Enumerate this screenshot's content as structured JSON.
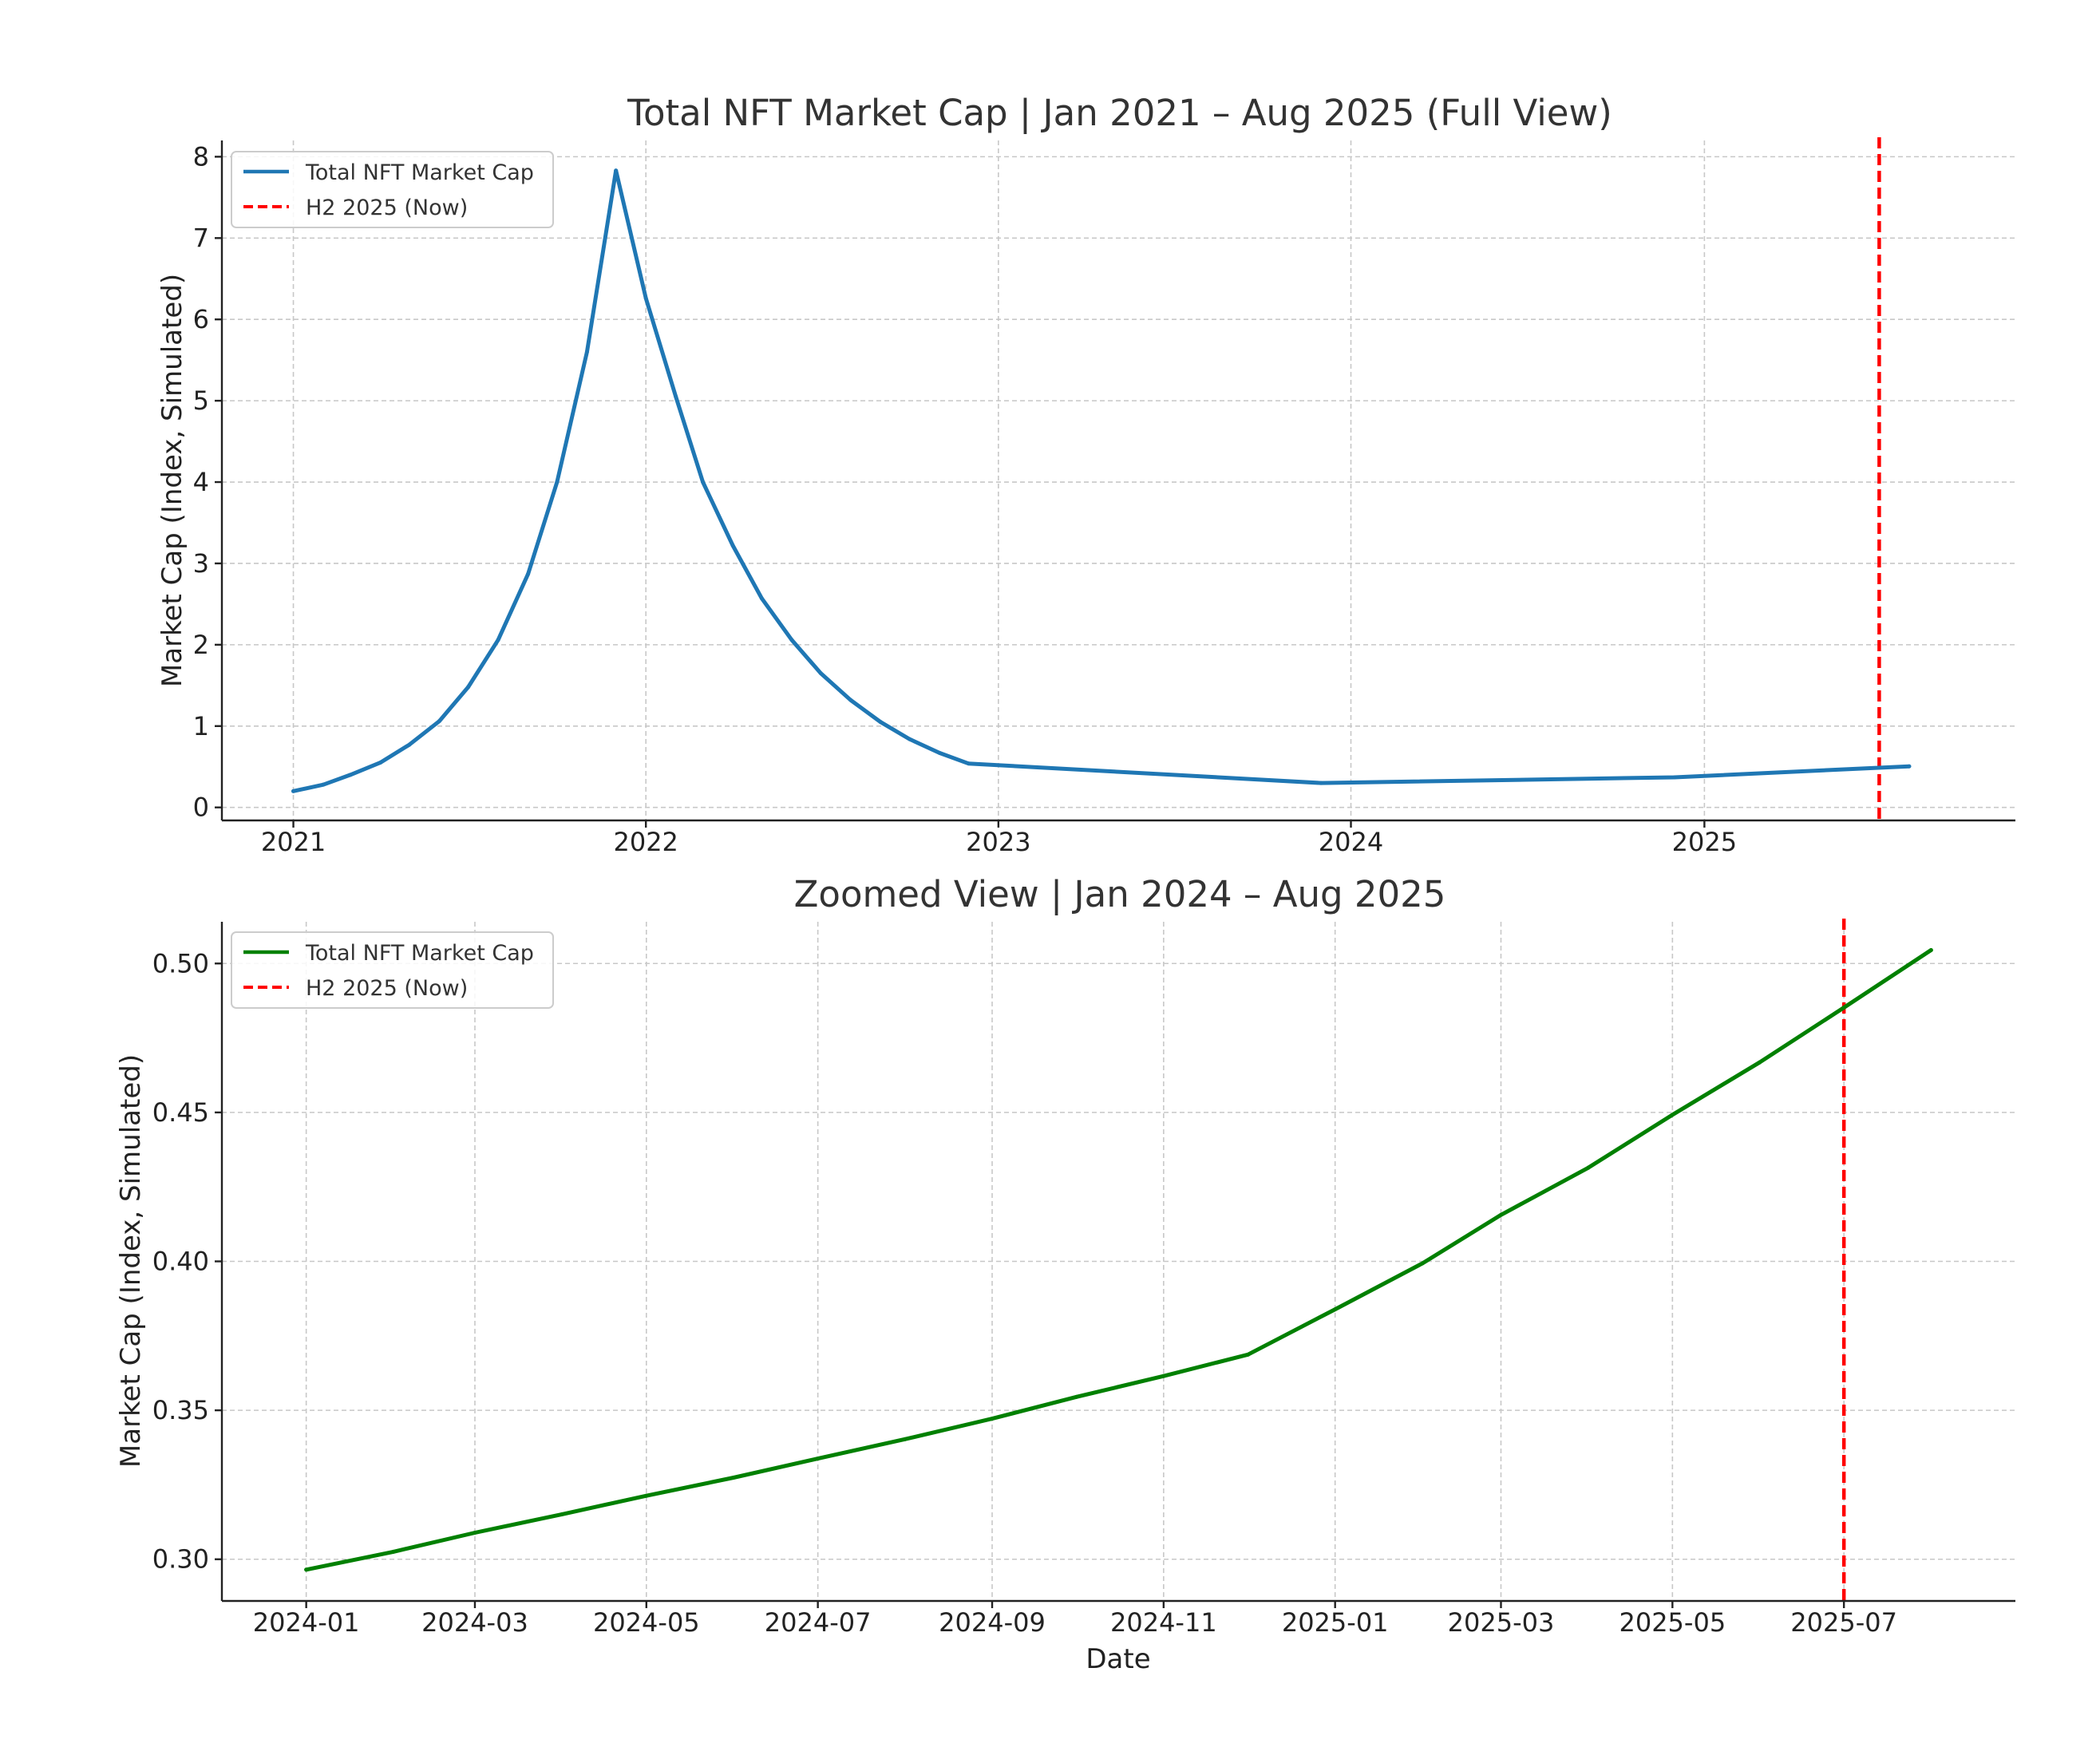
{
  "chart_data": [
    {
      "type": "line",
      "title": "Total NFT Market Cap | Jan 2021 – Aug 2025 (Full View)",
      "xlabel": "",
      "ylabel": "Market Cap (Index, Simulated)",
      "xlim": [
        "2020-10-19",
        "2025-11-19"
      ],
      "ylim": [
        -0.16,
        8.2
      ],
      "x_ticks": [
        "2021",
        "2022",
        "2023",
        "2024",
        "2025"
      ],
      "y_ticks": [
        0,
        1,
        2,
        3,
        4,
        5,
        6,
        7,
        8
      ],
      "grid": true,
      "legend": "top-left",
      "series": [
        {
          "name": "Total NFT Market Cap",
          "color": "#1f77b4",
          "style": "solid",
          "points": [
            [
              "2021-01-01",
              0.2
            ],
            [
              "2021-02-01",
              0.28
            ],
            [
              "2021-03-01",
              0.4
            ],
            [
              "2021-04-01",
              0.55
            ],
            [
              "2021-05-01",
              0.77
            ],
            [
              "2021-06-01",
              1.06
            ],
            [
              "2021-07-01",
              1.48
            ],
            [
              "2021-08-01",
              2.06
            ],
            [
              "2021-09-01",
              2.87
            ],
            [
              "2021-10-01",
              4.0
            ],
            [
              "2021-11-01",
              5.6
            ],
            [
              "2021-12-01",
              7.83
            ],
            [
              "2022-01-01",
              6.26
            ],
            [
              "2022-02-01",
              5.05
            ],
            [
              "2022-03-01",
              4.0
            ],
            [
              "2022-04-01",
              3.22
            ],
            [
              "2022-05-01",
              2.57
            ],
            [
              "2022-06-01",
              2.06
            ],
            [
              "2022-07-01",
              1.65
            ],
            [
              "2022-08-01",
              1.32
            ],
            [
              "2022-09-01",
              1.05
            ],
            [
              "2022-10-01",
              0.84
            ],
            [
              "2022-11-01",
              0.67
            ],
            [
              "2022-12-01",
              0.54
            ],
            [
              "2023-12-01",
              0.3
            ],
            [
              "2024-12-01",
              0.37
            ],
            [
              "2025-08-01",
              0.505
            ]
          ]
        }
      ],
      "vlines": [
        {
          "name": "H2 2025 (Now)",
          "x": "2025-07-01",
          "color": "#ff0000",
          "style": "dashed"
        }
      ]
    },
    {
      "type": "line",
      "title": "Zoomed View | Jan 2024 – Aug 2025",
      "xlabel": "Date",
      "ylabel": "Market Cap (Index, Simulated)",
      "xlim": [
        "2023-12-02",
        "2025-08-31"
      ],
      "ylim": [
        0.286,
        0.514
      ],
      "x_ticks": [
        "2024-01",
        "2024-03",
        "2024-05",
        "2024-07",
        "2024-09",
        "2024-11",
        "2025-01",
        "2025-03",
        "2025-05",
        "2025-07"
      ],
      "y_ticks": [
        "0.30",
        "0.35",
        "0.40",
        "0.45",
        "0.50"
      ],
      "grid": true,
      "legend": "top-left",
      "series": [
        {
          "name": "Total NFT Market Cap",
          "color": "#008000",
          "style": "solid",
          "points": [
            [
              "2024-01-01",
              0.2965
            ],
            [
              "2024-02-01",
              0.3025
            ],
            [
              "2024-03-01",
              0.3089
            ],
            [
              "2024-04-01",
              0.3151
            ],
            [
              "2024-05-01",
              0.3213
            ],
            [
              "2024-06-01",
              0.3274
            ],
            [
              "2024-07-01",
              0.3338
            ],
            [
              "2024-08-01",
              0.3403
            ],
            [
              "2024-09-01",
              0.3472
            ],
            [
              "2024-10-01",
              0.3545
            ],
            [
              "2024-11-01",
              0.3615
            ],
            [
              "2024-12-01",
              0.3687
            ],
            [
              "2025-01-01",
              0.3839
            ],
            [
              "2025-02-01",
              0.3993
            ],
            [
              "2025-03-01",
              0.4156
            ],
            [
              "2025-04-01",
              0.4314
            ],
            [
              "2025-05-01",
              0.4492
            ],
            [
              "2025-06-01",
              0.4668
            ],
            [
              "2025-07-01",
              0.4852
            ],
            [
              "2025-08-01",
              0.5045
            ]
          ]
        }
      ],
      "vlines": [
        {
          "name": "H2 2025 (Now)",
          "x": "2025-07-01",
          "color": "#ff0000",
          "style": "dashed"
        }
      ]
    }
  ]
}
